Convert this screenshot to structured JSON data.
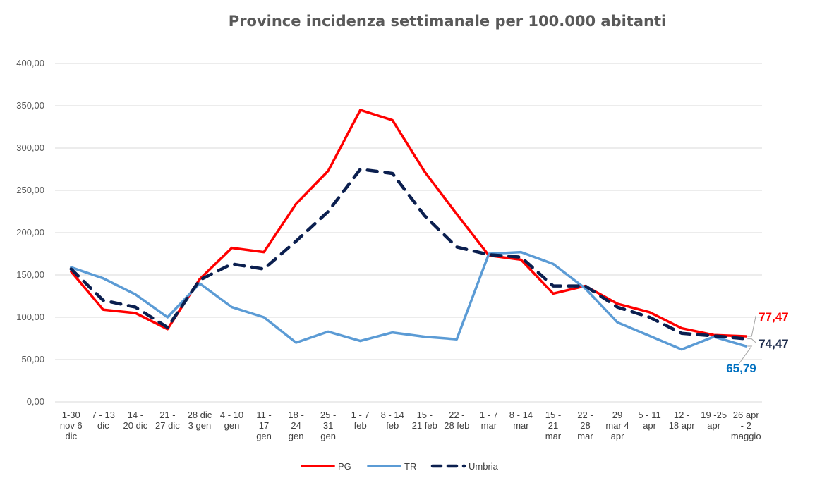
{
  "chart_data": {
    "type": "line",
    "title": "Province incidenza settimanale per 100.000 abitanti",
    "xlabel": "",
    "ylabel": "",
    "ylim": [
      0,
      400
    ],
    "yticks": [
      "0,00",
      "50,00",
      "100,00",
      "150,00",
      "200,00",
      "250,00",
      "300,00",
      "350,00",
      "400,00"
    ],
    "grid": true,
    "legend_position": "bottom",
    "categories": [
      [
        "1-30",
        "nov 6",
        "dic"
      ],
      [
        "7 - 13",
        "dic"
      ],
      [
        "14 -",
        "20 dic"
      ],
      [
        "21 -",
        "27 dic"
      ],
      [
        "28 dic",
        "3 gen"
      ],
      [
        "4 - 10",
        "gen"
      ],
      [
        "11 -",
        "17",
        "gen"
      ],
      [
        "18 -",
        "24",
        "gen"
      ],
      [
        "25 -",
        "31",
        "gen"
      ],
      [
        "1 - 7",
        "feb"
      ],
      [
        "8 - 14",
        "feb"
      ],
      [
        "15 -",
        "21 feb"
      ],
      [
        "22 -",
        "28 feb"
      ],
      [
        "1 - 7",
        "mar"
      ],
      [
        "8 - 14",
        "mar"
      ],
      [
        "15 -",
        "21",
        "mar"
      ],
      [
        "22 -",
        "28",
        "mar"
      ],
      [
        "29",
        "mar 4",
        "apr"
      ],
      [
        "5 - 11",
        "apr"
      ],
      [
        "12 -",
        "18 apr"
      ],
      [
        "19 -25",
        "apr"
      ],
      [
        "26 apr",
        "- 2",
        "maggio"
      ]
    ],
    "series": [
      {
        "name": "PG",
        "color": "#ff0000",
        "style": "solid",
        "values": [
          154,
          109,
          105,
          86,
          145,
          182,
          177,
          234,
          273,
          345,
          333,
          272,
          222,
          173,
          168,
          128,
          137,
          116,
          106,
          87,
          79,
          77.47
        ],
        "end_label": "77,47"
      },
      {
        "name": "TR",
        "color": "#5b9bd5",
        "style": "solid",
        "values": [
          159,
          146,
          127,
          100,
          140,
          112,
          100,
          70,
          83,
          72,
          82,
          77,
          74,
          175,
          177,
          163,
          134,
          94,
          78,
          62,
          77,
          65.79
        ],
        "end_label": "65,79"
      },
      {
        "name": "Umbria",
        "color": "#0b1f4f",
        "style": "dashed",
        "values": [
          157,
          120,
          112,
          88,
          144,
          163,
          157,
          190,
          225,
          275,
          270,
          220,
          183,
          174,
          171,
          137,
          137,
          112,
          100,
          81,
          78,
          74.47
        ],
        "end_label": "74,47"
      }
    ],
    "end_label_colors": {
      "PG": "#ff0000",
      "TR": "#0070c0",
      "Umbria": "#1f2d4d"
    }
  }
}
